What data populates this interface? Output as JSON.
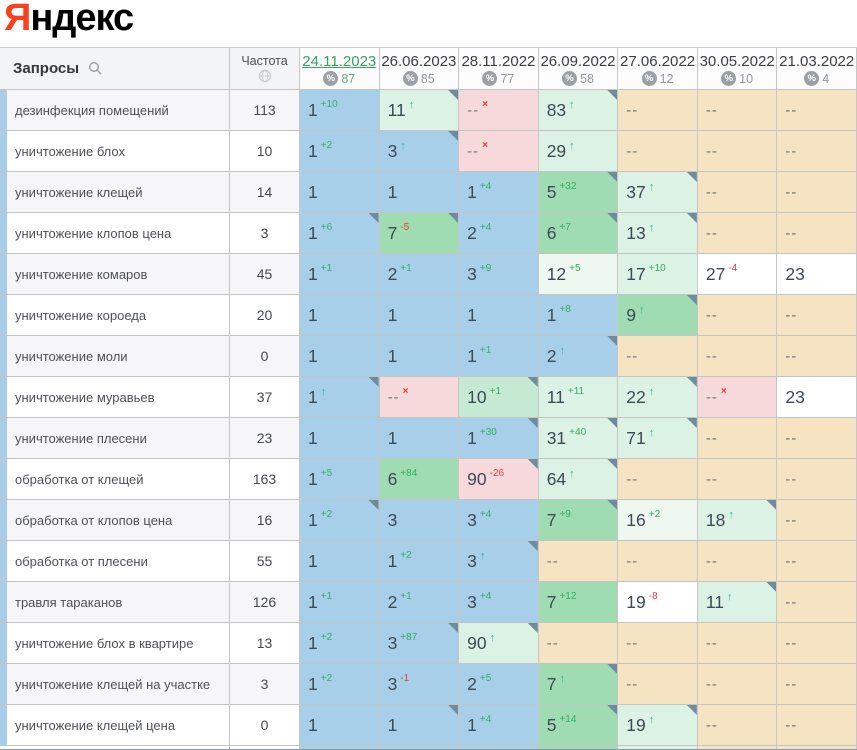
{
  "logo": {
    "ya": "Я",
    "ndex": "ндекс"
  },
  "header": {
    "queries": "Запросы",
    "frequency": "Частота",
    "percent_symbol": "%",
    "dates": [
      {
        "label": "24.11.2023",
        "count": "87",
        "active": true
      },
      {
        "label": "26.06.2023",
        "count": "85",
        "active": false
      },
      {
        "label": "28.11.2022",
        "count": "77",
        "active": false
      },
      {
        "label": "26.09.2022",
        "count": "58",
        "active": false
      },
      {
        "label": "27.06.2022",
        "count": "12",
        "active": false
      },
      {
        "label": "30.05.2022",
        "count": "10",
        "active": false
      },
      {
        "label": "21.03.2022",
        "count": "4",
        "active": false
      }
    ]
  },
  "rows": [
    {
      "keyword": "дезинфекция помещений",
      "frequency": "113",
      "cells": [
        {
          "v": "1",
          "bg": "blue",
          "sup": "+10",
          "supType": "up"
        },
        {
          "v": "11",
          "bg": "mint",
          "arrow": true,
          "corner": true
        },
        {
          "v": "--",
          "bg": "pink",
          "x": true
        },
        {
          "v": "83",
          "bg": "mint",
          "arrow": true,
          "corner": true
        },
        {
          "v": "--",
          "bg": "beige"
        },
        {
          "v": "--",
          "bg": "beige"
        },
        {
          "v": "--",
          "bg": "beige"
        }
      ]
    },
    {
      "keyword": "уничтожение блох",
      "frequency": "10",
      "cells": [
        {
          "v": "1",
          "bg": "blue",
          "sup": "+2",
          "supType": "up"
        },
        {
          "v": "3",
          "bg": "blue",
          "arrow": true,
          "corner": true
        },
        {
          "v": "--",
          "bg": "pink",
          "x": true
        },
        {
          "v": "29",
          "bg": "mint",
          "arrow": true
        },
        {
          "v": "--",
          "bg": "beige"
        },
        {
          "v": "--",
          "bg": "beige"
        },
        {
          "v": "--",
          "bg": "beige"
        }
      ]
    },
    {
      "keyword": "уничтожение клещей",
      "frequency": "14",
      "cells": [
        {
          "v": "1",
          "bg": "blue"
        },
        {
          "v": "1",
          "bg": "blue"
        },
        {
          "v": "1",
          "bg": "blue",
          "sup": "+4",
          "supType": "up"
        },
        {
          "v": "5",
          "bg": "green",
          "sup": "+32",
          "supType": "up",
          "corner": true
        },
        {
          "v": "37",
          "bg": "mint",
          "arrow": true,
          "corner": true
        },
        {
          "v": "--",
          "bg": "beige"
        },
        {
          "v": "--",
          "bg": "beige"
        }
      ]
    },
    {
      "keyword": "уничтожение клопов цена",
      "frequency": "3",
      "cells": [
        {
          "v": "1",
          "bg": "blue",
          "sup": "+6",
          "supType": "up",
          "corner": true
        },
        {
          "v": "7",
          "bg": "green",
          "sup": "-5",
          "supType": "down",
          "corner": true
        },
        {
          "v": "2",
          "bg": "blue",
          "sup": "+4",
          "supType": "up"
        },
        {
          "v": "6",
          "bg": "green",
          "sup": "+7",
          "supType": "up",
          "corner": true
        },
        {
          "v": "13",
          "bg": "mint",
          "arrow": true,
          "corner": true
        },
        {
          "v": "--",
          "bg": "beige"
        },
        {
          "v": "--",
          "bg": "beige"
        }
      ]
    },
    {
      "keyword": "уничтожение комаров",
      "frequency": "45",
      "cells": [
        {
          "v": "1",
          "bg": "blue",
          "sup": "+1",
          "supType": "up"
        },
        {
          "v": "2",
          "bg": "blue",
          "sup": "+1",
          "supType": "up"
        },
        {
          "v": "3",
          "bg": "blue",
          "sup": "+9",
          "supType": "up"
        },
        {
          "v": "12",
          "bg": "pale",
          "sup": "+5",
          "supType": "up"
        },
        {
          "v": "17",
          "bg": "mint",
          "sup": "+10",
          "supType": "up"
        },
        {
          "v": "27",
          "bg": "white",
          "sup": "-4",
          "supType": "down"
        },
        {
          "v": "23",
          "bg": "white"
        }
      ]
    },
    {
      "keyword": "уничтожение короеда",
      "frequency": "20",
      "cells": [
        {
          "v": "1",
          "bg": "blue"
        },
        {
          "v": "1",
          "bg": "blue"
        },
        {
          "v": "1",
          "bg": "blue"
        },
        {
          "v": "1",
          "bg": "blue",
          "sup": "+8",
          "supType": "up"
        },
        {
          "v": "9",
          "bg": "green",
          "arrow": true,
          "corner": true
        },
        {
          "v": "--",
          "bg": "beige"
        },
        {
          "v": "--",
          "bg": "beige"
        }
      ]
    },
    {
      "keyword": "уничтожение моли",
      "frequency": "0",
      "cells": [
        {
          "v": "1",
          "bg": "blue"
        },
        {
          "v": "1",
          "bg": "blue"
        },
        {
          "v": "1",
          "bg": "blue",
          "sup": "+1",
          "supType": "up"
        },
        {
          "v": "2",
          "bg": "blue",
          "arrow": true,
          "corner": true
        },
        {
          "v": "--",
          "bg": "beige"
        },
        {
          "v": "--",
          "bg": "beige"
        },
        {
          "v": "--",
          "bg": "beige"
        }
      ]
    },
    {
      "keyword": "уничтожение муравьев",
      "frequency": "37",
      "cells": [
        {
          "v": "1",
          "bg": "blue",
          "arrow": true,
          "corner": true
        },
        {
          "v": "--",
          "bg": "pink",
          "x": true
        },
        {
          "v": "10",
          "bg": "green2",
          "sup": "+1",
          "supType": "up",
          "corner": true
        },
        {
          "v": "11",
          "bg": "mint",
          "sup": "+11",
          "supType": "up"
        },
        {
          "v": "22",
          "bg": "mint",
          "arrow": true,
          "corner": true
        },
        {
          "v": "--",
          "bg": "pink",
          "x": true
        },
        {
          "v": "23",
          "bg": "white"
        }
      ]
    },
    {
      "keyword": "уничтожение плесени",
      "frequency": "23",
      "cells": [
        {
          "v": "1",
          "bg": "blue"
        },
        {
          "v": "1",
          "bg": "blue"
        },
        {
          "v": "1",
          "bg": "blue",
          "sup": "+30",
          "supType": "up",
          "corner": true
        },
        {
          "v": "31",
          "bg": "mint",
          "sup": "+40",
          "supType": "up",
          "corner": true
        },
        {
          "v": "71",
          "bg": "mint",
          "arrow": true,
          "corner": true
        },
        {
          "v": "--",
          "bg": "beige"
        },
        {
          "v": "--",
          "bg": "beige"
        }
      ]
    },
    {
      "keyword": "обработка от клещей",
      "frequency": "163",
      "cells": [
        {
          "v": "1",
          "bg": "blue",
          "sup": "+5",
          "supType": "up"
        },
        {
          "v": "6",
          "bg": "green",
          "sup": "+84",
          "supType": "up"
        },
        {
          "v": "90",
          "bg": "pink",
          "sup": "-26",
          "supType": "down",
          "corner": true
        },
        {
          "v": "64",
          "bg": "mint",
          "arrow": true,
          "corner": true
        },
        {
          "v": "--",
          "bg": "beige"
        },
        {
          "v": "--",
          "bg": "beige"
        },
        {
          "v": "--",
          "bg": "beige"
        }
      ]
    },
    {
      "keyword": "обработка от клопов цена",
      "frequency": "16",
      "cells": [
        {
          "v": "1",
          "bg": "blue",
          "sup": "+2",
          "supType": "up",
          "corner": true
        },
        {
          "v": "3",
          "bg": "blue"
        },
        {
          "v": "3",
          "bg": "blue",
          "sup": "+4",
          "supType": "up"
        },
        {
          "v": "7",
          "bg": "green",
          "sup": "+9",
          "supType": "up",
          "corner": true
        },
        {
          "v": "16",
          "bg": "pale",
          "sup": "+2",
          "supType": "up"
        },
        {
          "v": "18",
          "bg": "mint",
          "arrow": true,
          "corner": true
        },
        {
          "v": "--",
          "bg": "beige"
        }
      ]
    },
    {
      "keyword": "обработка от плесени",
      "frequency": "55",
      "cells": [
        {
          "v": "1",
          "bg": "blue"
        },
        {
          "v": "1",
          "bg": "blue",
          "sup": "+2",
          "supType": "up"
        },
        {
          "v": "3",
          "bg": "blue",
          "arrow": true,
          "corner": true
        },
        {
          "v": "--",
          "bg": "beige"
        },
        {
          "v": "--",
          "bg": "beige"
        },
        {
          "v": "--",
          "bg": "beige"
        },
        {
          "v": "--",
          "bg": "beige"
        }
      ]
    },
    {
      "keyword": "травля тараканов",
      "frequency": "126",
      "cells": [
        {
          "v": "1",
          "bg": "blue",
          "sup": "+1",
          "supType": "up"
        },
        {
          "v": "2",
          "bg": "blue",
          "sup": "+1",
          "supType": "up"
        },
        {
          "v": "3",
          "bg": "blue",
          "sup": "+4",
          "supType": "up"
        },
        {
          "v": "7",
          "bg": "green",
          "sup": "+12",
          "supType": "up"
        },
        {
          "v": "19",
          "bg": "white",
          "sup": "-8",
          "supType": "down"
        },
        {
          "v": "11",
          "bg": "mint",
          "arrow": true,
          "corner": true
        },
        {
          "v": "--",
          "bg": "beige"
        }
      ]
    },
    {
      "keyword": "уничтожение блох в квартире",
      "frequency": "13",
      "cells": [
        {
          "v": "1",
          "bg": "blue",
          "sup": "+2",
          "supType": "up"
        },
        {
          "v": "3",
          "bg": "blue",
          "sup": "+87",
          "supType": "up",
          "corner": true
        },
        {
          "v": "90",
          "bg": "mint",
          "arrow": true,
          "corner": true
        },
        {
          "v": "--",
          "bg": "beige"
        },
        {
          "v": "--",
          "bg": "beige"
        },
        {
          "v": "--",
          "bg": "beige"
        },
        {
          "v": "--",
          "bg": "beige"
        }
      ]
    },
    {
      "keyword": "уничтожение клещей на участке",
      "frequency": "3",
      "cells": [
        {
          "v": "1",
          "bg": "blue",
          "sup": "+2",
          "supType": "up"
        },
        {
          "v": "3",
          "bg": "blue",
          "sup": "-1",
          "supType": "down"
        },
        {
          "v": "2",
          "bg": "blue",
          "sup": "+5",
          "supType": "up"
        },
        {
          "v": "7",
          "bg": "green",
          "arrow": true,
          "corner": true
        },
        {
          "v": "--",
          "bg": "beige"
        },
        {
          "v": "--",
          "bg": "beige"
        },
        {
          "v": "--",
          "bg": "beige"
        }
      ]
    },
    {
      "keyword": "уничтожение клещей цена",
      "frequency": "0",
      "cells": [
        {
          "v": "1",
          "bg": "blue"
        },
        {
          "v": "1",
          "bg": "blue",
          "corner": true
        },
        {
          "v": "1",
          "bg": "blue",
          "sup": "+4",
          "supType": "up"
        },
        {
          "v": "5",
          "bg": "green",
          "sup": "+14",
          "supType": "up",
          "corner": true
        },
        {
          "v": "19",
          "bg": "mint",
          "arrow": true,
          "corner": true
        },
        {
          "v": "--",
          "bg": "beige"
        },
        {
          "v": "--",
          "bg": "beige"
        }
      ]
    }
  ],
  "partial_row": {
    "cells": [
      "blue",
      "blue",
      "blue",
      "green",
      "mint",
      "beige",
      "beige"
    ]
  },
  "icons": {
    "search": "magnifier",
    "globe": "globe",
    "up_arrow": "↑",
    "dropped_x": "×",
    "dash": "--"
  },
  "colors": {
    "blue": "#a8cfe9",
    "green": "#9fdcb2",
    "green2": "#c5e9d2",
    "mint": "#dcf2e4",
    "pale": "#eef8f1",
    "white": "#ffffff",
    "pink": "#f8d9db",
    "beige": "#f5e3c1",
    "row_odd": "#f6f6f8",
    "row_even": "#ffffff",
    "rank_strip": "#a9cce8",
    "corner": "#6e8c9b",
    "sup_up": "#2fae61",
    "sup_down": "#e03e36",
    "arrow": "#2fb39c",
    "x_mark": "#e03e36",
    "active_date": "#3da263",
    "logo_red": "#fc3f1d",
    "bottom_bar": "#7f9dad"
  }
}
